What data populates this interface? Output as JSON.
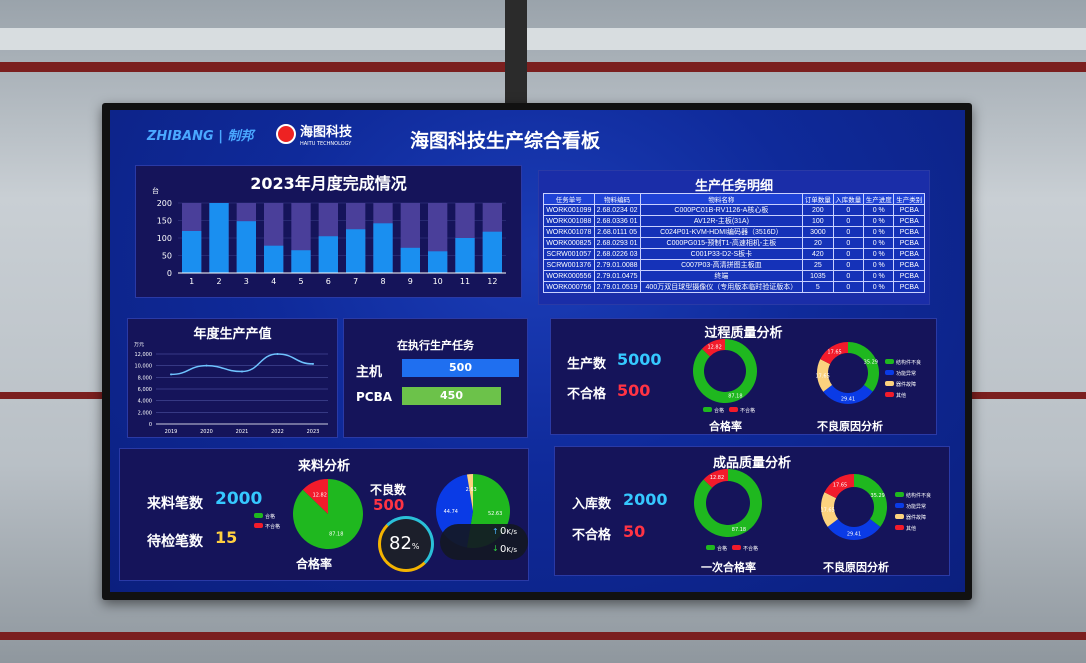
{
  "header": {
    "logo_zhibang": "ZHIBANG | 制邦",
    "logo_haitu": "海图科技",
    "logo_haitu_en": "HAITU TECHNOLOGY",
    "title": "海图科技生产综合看板"
  },
  "colors": {
    "bg": "#0f2a9a",
    "panel": "#15145a",
    "pass": "#1fb81f",
    "fail": "#f21b2b",
    "blue": "#0a3be6",
    "yellow": "#fcd27e",
    "bar": "#1a8ff0",
    "bar_bg": "#4a3f9a",
    "cyan": "#35c8ff",
    "accent_red": "#ff3344",
    "accent_yellow": "#ffcf40"
  },
  "monthly": {
    "title": "2023年月度完成情况",
    "unit": "台"
  },
  "chart_data": [
    {
      "type": "bar",
      "title": "2023年月度完成情况",
      "ylabel": "台",
      "categories": [
        "1",
        "2",
        "3",
        "4",
        "5",
        "6",
        "7",
        "8",
        "9",
        "10",
        "11",
        "12"
      ],
      "values": [
        120,
        200,
        148,
        78,
        65,
        105,
        125,
        142,
        72,
        62,
        100,
        118
      ],
      "ylim": [
        0,
        200
      ],
      "yticks": [
        0,
        50,
        100,
        150,
        200
      ]
    },
    {
      "type": "line",
      "title": "年度生产产值",
      "ylabel": "万元",
      "categories": [
        "2019",
        "2020",
        "2021",
        "2022",
        "2023"
      ],
      "values": [
        8500,
        10000,
        9000,
        12000,
        10300
      ],
      "ylim": [
        0,
        12000
      ],
      "yticks": [
        "0",
        "2,000",
        "4,000",
        "6,000",
        "8,000",
        "10,000",
        "12,000"
      ]
    },
    {
      "type": "pie",
      "title": "过程质量 合格率",
      "donut": true,
      "labels": [
        "合格",
        "不合格"
      ],
      "values": [
        87.18,
        12.82
      ]
    },
    {
      "type": "pie",
      "title": "过程质量 不良原因分析",
      "donut": true,
      "labels": [
        "结构件不良",
        "功能异常",
        "器件故障",
        "其他"
      ],
      "values": [
        35.29,
        29.41,
        17.65,
        17.65
      ]
    },
    {
      "type": "pie",
      "title": "来料 合格率",
      "labels": [
        "合格",
        "不合格"
      ],
      "values": [
        87.18,
        12.82
      ]
    },
    {
      "type": "pie",
      "title": "来料 不良数",
      "values": [
        52.63,
        44.74,
        2.63
      ]
    },
    {
      "type": "pie",
      "title": "成品 一次合格率",
      "donut": true,
      "labels": [
        "合格",
        "不合格"
      ],
      "values": [
        87.18,
        12.82
      ]
    },
    {
      "type": "pie",
      "title": "成品 不良原因分析",
      "donut": true,
      "labels": [
        "结构件不良",
        "功能异常",
        "器件故障",
        "其他"
      ],
      "values": [
        35.29,
        29.41,
        17.65,
        17.65
      ]
    }
  ],
  "tasks": {
    "title": "生产任务明细",
    "headers": [
      "任务单号",
      "物料编码",
      "物料名称",
      "订单数量",
      "入库数量",
      "生产进度",
      "生产类别"
    ],
    "rows": [
      [
        "WORK001099",
        "2.68.0234 02",
        "C000PC01B-RV1126-A核心板",
        "200",
        "0",
        "0 %",
        "PCBA"
      ],
      [
        "WORK001088",
        "2.68.0336 01",
        "AV12R-主板(31A)",
        "100",
        "0",
        "0 %",
        "PCBA"
      ],
      [
        "WORK001078",
        "2.68.0111 05",
        "C024P01-KVM-HDMI编码器（3516D）",
        "3000",
        "0",
        "0 %",
        "PCBA"
      ],
      [
        "WORK000825",
        "2.68.0293 01",
        "C000PG015-预制T1-高速相机-主板",
        "20",
        "0",
        "0 %",
        "PCBA"
      ],
      [
        "SCRW001057",
        "2.68.0226 03",
        "C001P33-D2-S板卡",
        "420",
        "0",
        "0 %",
        "PCBA"
      ],
      [
        "SCRW001376",
        "2.79.01.0088",
        "C007P03-高清拼图主板皿",
        "25",
        "0",
        "0 %",
        "PCBA"
      ],
      [
        "WORK000556",
        "2.79.01.0475",
        "终端",
        "1035",
        "0",
        "0 %",
        "PCBA"
      ],
      [
        "WORK000756",
        "2.79.01.0519",
        "400万双目球型摄像仪（专用版本临时验证版本）",
        "5",
        "0",
        "0 %",
        "PCBA"
      ]
    ]
  },
  "annual": {
    "title": "年度生产产值",
    "unit": "万元"
  },
  "executing": {
    "title": "在执行生产任务",
    "items": [
      {
        "label": "主机",
        "value": "500",
        "fraction": 1.0
      },
      {
        "label": "PCBA",
        "value": "450",
        "fraction": 0.9
      }
    ]
  },
  "process": {
    "title": "过程质量分析",
    "produced_label": "生产数",
    "produced": "5000",
    "fail_label": "不合格",
    "fail": "500",
    "pass_caption": "合格率",
    "cause_caption": "不良原因分析",
    "pass_legend": [
      "合格",
      "不合格"
    ],
    "cause_legend": [
      "结构件不良",
      "功能异常",
      "器件故障",
      "其他"
    ]
  },
  "incoming": {
    "title": "来料分析",
    "count_label": "来料笔数",
    "count": "2000",
    "pending_label": "待检笔数",
    "pending": "15",
    "pass_caption": "合格率",
    "bad_label": "不良数",
    "bad": "500",
    "pass_legend": [
      "合格",
      "不合格"
    ]
  },
  "finished": {
    "title": "成品质量分析",
    "stock_label": "入库数",
    "stock": "2000",
    "fail_label": "不合格",
    "fail": "50",
    "pass_caption": "一次合格率",
    "cause_caption": "不良原因分析",
    "pass_legend": [
      "合格",
      "不合格"
    ],
    "cause_legend": [
      "结构件不良",
      "功能异常",
      "器件故障",
      "其他"
    ]
  },
  "overlay": {
    "cpu": "82",
    "cpu_unit": "%",
    "up": "0",
    "up_unit": "K/s",
    "down": "0",
    "down_unit": "K/s"
  }
}
